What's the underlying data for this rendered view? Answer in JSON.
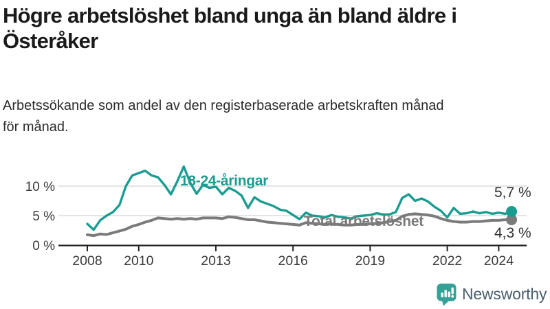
{
  "header": {
    "title_line1": "Högre arbetslöshet bland unga än bland äldre i",
    "title_line2": "Österåker",
    "subtitle_line1": "Arbetssökande som andel av den registerbaserade arbetskraften månad",
    "subtitle_line2": "för månad."
  },
  "colors": {
    "youth": "#1a9c90",
    "total": "#7b7b7b",
    "axis": "#222222",
    "grid": "#dcdcdc",
    "tick_text": "#3a3a3a",
    "logo_teal": "#35a096",
    "logo_text": "#4a5f6d"
  },
  "annotations": {
    "youth_label": "18-24-åringar",
    "total_label": "Total arbetslöshet",
    "youth_end_value": "5,7 %",
    "total_end_value": "4,3 %"
  },
  "logo": {
    "brand": "Newsworthy",
    "icon": "bar-chart-speech-bubble-icon"
  },
  "chart_data": {
    "type": "line",
    "title": "Högre arbetslöshet bland unga än bland äldre i Österåker",
    "subtitle": "Arbetssökande som andel av den registerbaserade arbetskraften månad för månad.",
    "unit": "%",
    "xlim": [
      2007.8,
      2024.75
    ],
    "ylim": [
      0,
      14
    ],
    "grid": "horizontal",
    "legend_position": "inline-labels",
    "x_ticks": [
      {
        "value": 2008,
        "label": "2008"
      },
      {
        "value": 2010,
        "label": "2010"
      },
      {
        "value": 2013,
        "label": "2013"
      },
      {
        "value": 2016,
        "label": "2016"
      },
      {
        "value": 2019,
        "label": "2019"
      },
      {
        "value": 2022,
        "label": "2022"
      },
      {
        "value": 2024,
        "label": "2024"
      }
    ],
    "y_ticks": [
      {
        "value": 0,
        "label": "0 %"
      },
      {
        "value": 5,
        "label": "5 %"
      },
      {
        "value": 10,
        "label": "10 %"
      }
    ],
    "x": [
      2008,
      2008.25,
      2008.5,
      2008.75,
      2009,
      2009.25,
      2009.5,
      2009.75,
      2010,
      2010.25,
      2010.5,
      2010.75,
      2011,
      2011.25,
      2011.5,
      2011.75,
      2012,
      2012.25,
      2012.5,
      2012.75,
      2013,
      2013.25,
      2013.5,
      2013.75,
      2014,
      2014.25,
      2014.5,
      2014.75,
      2015,
      2015.25,
      2015.5,
      2015.75,
      2016,
      2016.25,
      2016.5,
      2016.75,
      2017,
      2017.25,
      2017.5,
      2017.75,
      2018,
      2018.25,
      2018.5,
      2018.75,
      2019,
      2019.25,
      2019.5,
      2019.75,
      2020,
      2020.25,
      2020.5,
      2020.75,
      2021,
      2021.25,
      2021.5,
      2021.75,
      2022,
      2022.25,
      2022.5,
      2022.75,
      2023,
      2023.25,
      2023.5,
      2023.75,
      2024,
      2024.25,
      2024.5
    ],
    "series": [
      {
        "name": "18-24-åringar",
        "color": "#1a9c90",
        "end_label": "5,7 %",
        "end_value": 5.7,
        "values": [
          3.6,
          2.6,
          4.2,
          5.0,
          5.6,
          6.8,
          10.0,
          11.8,
          12.2,
          12.6,
          11.8,
          11.5,
          10.2,
          8.6,
          10.8,
          13.3,
          10.6,
          8.7,
          10.2,
          9.7,
          9.9,
          8.6,
          9.7,
          9.2,
          8.4,
          6.3,
          8.1,
          7.4,
          7.0,
          6.6,
          6.0,
          5.8,
          5.1,
          4.4,
          5.5,
          5.0,
          4.9,
          4.7,
          5.1,
          4.8,
          4.7,
          4.5,
          4.9,
          5.0,
          5.1,
          5.4,
          5.2,
          5.2,
          5.6,
          8.0,
          8.6,
          7.5,
          7.9,
          7.4,
          6.5,
          5.8,
          4.7,
          6.3,
          5.3,
          5.4,
          5.7,
          5.4,
          5.6,
          5.3,
          5.5,
          5.3,
          5.7
        ]
      },
      {
        "name": "Total arbetslöshet",
        "color": "#7b7b7b",
        "end_label": "4,3 %",
        "end_value": 4.3,
        "values": [
          1.75,
          1.6,
          1.9,
          1.8,
          2.1,
          2.4,
          2.7,
          3.2,
          3.5,
          3.9,
          4.2,
          4.6,
          4.5,
          4.4,
          4.5,
          4.4,
          4.5,
          4.4,
          4.6,
          4.6,
          4.6,
          4.5,
          4.8,
          4.7,
          4.5,
          4.3,
          4.3,
          4.1,
          3.9,
          3.8,
          3.7,
          3.6,
          3.5,
          3.4,
          3.8,
          3.7,
          3.6,
          3.5,
          3.6,
          3.5,
          3.4,
          3.4,
          3.5,
          3.5,
          3.6,
          3.7,
          3.8,
          4.0,
          4.2,
          4.9,
          5.2,
          5.3,
          5.2,
          5.1,
          4.9,
          4.5,
          4.2,
          4.0,
          3.9,
          3.9,
          4.0,
          4.0,
          4.1,
          4.2,
          4.2,
          4.3,
          4.3
        ]
      }
    ]
  }
}
